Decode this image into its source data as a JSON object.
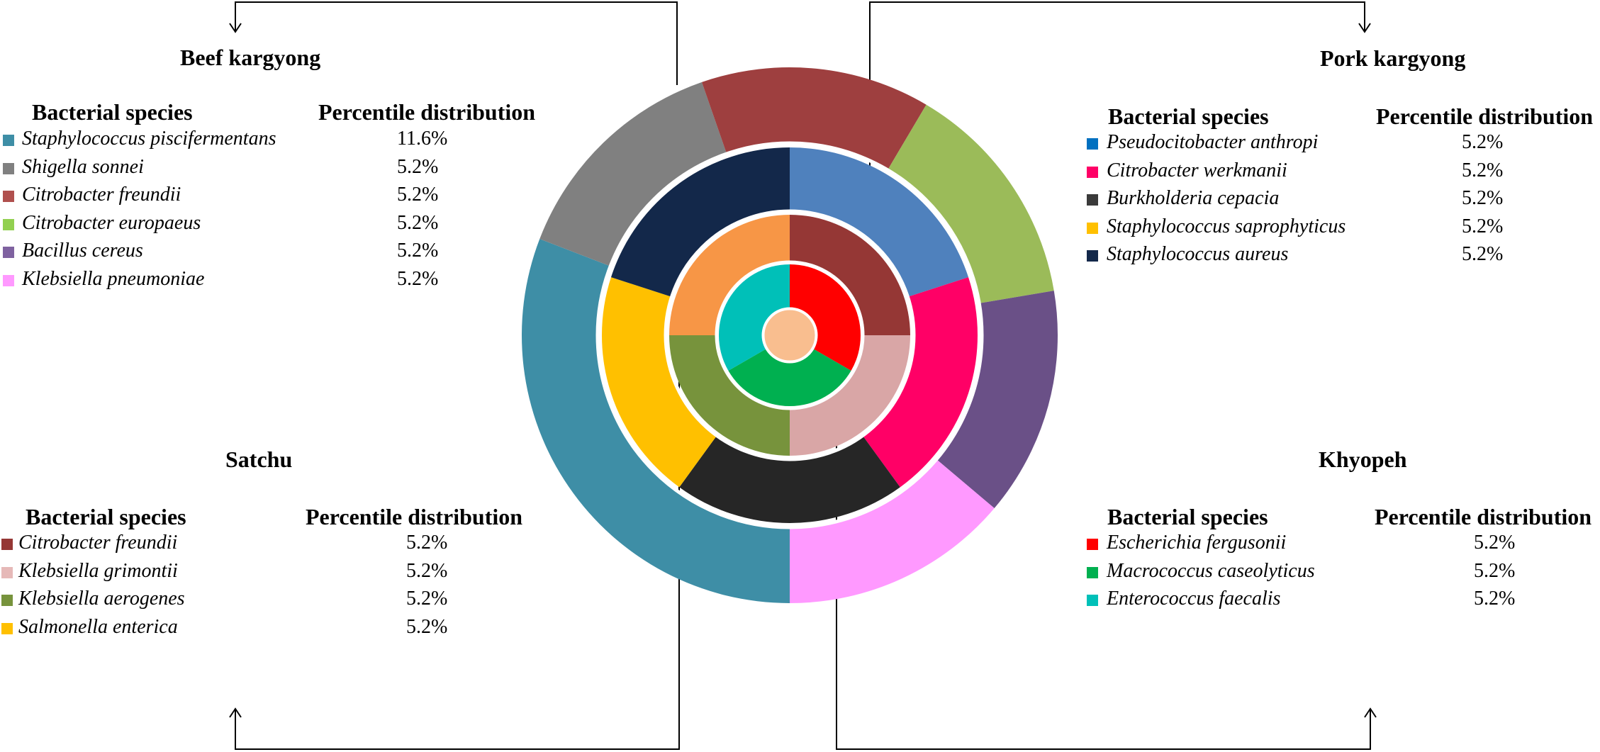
{
  "chart_data": {
    "type": "pie",
    "rings": [
      {
        "ring": "outer",
        "group": "Beef kargyong",
        "slices": [
          {
            "label": "Staphylococcus piscifermentans",
            "value": 11.6,
            "color": "#3E8EA6"
          },
          {
            "label": "Shigella sonnei",
            "value": 5.2,
            "color": "#808080"
          },
          {
            "label": "Citrobacter freundii",
            "value": 5.2,
            "color": "#9E3F3F"
          },
          {
            "label": "Citrobacter europaeus",
            "value": 5.2,
            "color": "#9BBB59"
          },
          {
            "label": "Bacillus cereus",
            "value": 5.2,
            "color": "#6A5087"
          },
          {
            "label": "Klebsiella pneumoniae",
            "value": 5.2,
            "color": "#FF99FF"
          }
        ]
      },
      {
        "ring": "second",
        "group": "Pork kargyong",
        "slices": [
          {
            "label": "Pseudocitobacter anthropi",
            "value": 5.2,
            "color": "#4F81BD"
          },
          {
            "label": "Citrobacter werkmanii",
            "value": 5.2,
            "color": "#FF0066"
          },
          {
            "label": "Burkholderia cepacia",
            "value": 5.2,
            "color": "#262626"
          },
          {
            "label": "Staphylococcus saprophyticus",
            "value": 5.2,
            "color": "#FFC000"
          },
          {
            "label": "Staphylococcus aureus",
            "value": 5.2,
            "color": "#13284A"
          }
        ]
      },
      {
        "ring": "third",
        "group": "Satchu",
        "slices": [
          {
            "label": "Citrobacter freundii",
            "value": 5.2,
            "color": "#953735"
          },
          {
            "label": "Klebsiella grimontii",
            "value": 5.2,
            "color": "#D9A6A6"
          },
          {
            "label": "Klebsiella aerogenes",
            "value": 5.2,
            "color": "#77933C"
          },
          {
            "label": "Salmonella enterica",
            "value": 5.2,
            "color": "#F79646"
          }
        ]
      },
      {
        "ring": "inner",
        "group": "Khyopeh",
        "slices": [
          {
            "label": "Escherichia fergusonii",
            "value": 5.2,
            "color": "#FF0000"
          },
          {
            "label": "Macrococcus caseolyticus",
            "value": 5.2,
            "color": "#00B050"
          },
          {
            "label": "Enterococcus faecalis",
            "value": 5.2,
            "color": "#00C0B8"
          }
        ]
      }
    ],
    "center_color": "#F9BE8F"
  },
  "legends": {
    "beef": {
      "title": "Beef kargyong",
      "col_species": "Bacterial species",
      "col_percent": "Percentile distribution",
      "rows": [
        {
          "species": "Staphylococcus piscifermentans",
          "percent": "11.6%",
          "color": "#3E8EA6"
        },
        {
          "species": "Shigella sonnei",
          "percent": "5.2%",
          "color": "#808080"
        },
        {
          "species": "Citrobacter freundii",
          "percent": "5.2%",
          "color": "#B0504E"
        },
        {
          "species": "Citrobacter europaeus",
          "percent": "5.2%",
          "color": "#92D050"
        },
        {
          "species": "Bacillus cereus",
          "percent": "5.2%",
          "color": "#7F62A0"
        },
        {
          "species": "Klebsiella pneumoniae",
          "percent": "5.2%",
          "color": "#FF99FF"
        }
      ]
    },
    "pork": {
      "title": "Pork kargyong",
      "col_species": "Bacterial species",
      "col_percent": "Percentile distribution",
      "rows": [
        {
          "species": "Pseudocitobacter anthropi",
          "percent": "5.2%",
          "color": "#0070C0"
        },
        {
          "species": "Citrobacter werkmanii",
          "percent": "5.2%",
          "color": "#FF0066"
        },
        {
          "species": "Burkholderia cepacia",
          "percent": "5.2%",
          "color": "#3A3A3A"
        },
        {
          "species": "Staphylococcus saprophyticus",
          "percent": "5.2%",
          "color": "#FFC000"
        },
        {
          "species": "Staphylococcus aureus",
          "percent": "5.2%",
          "color": "#13284A"
        }
      ]
    },
    "satchu": {
      "title": "Satchu",
      "col_species": "Bacterial species",
      "col_percent": "Percentile distribution",
      "rows": [
        {
          "species": "Citrobacter freundii",
          "percent": "5.2%",
          "color": "#953735"
        },
        {
          "species": "Klebsiella grimontii",
          "percent": "5.2%",
          "color": "#E6B9B8"
        },
        {
          "species": "Klebsiella aerogenes",
          "percent": "5.2%",
          "color": "#77933C"
        },
        {
          "species": "Salmonella enterica",
          "percent": "5.2%",
          "color": "#FFC000"
        }
      ]
    },
    "khyopeh": {
      "title": "Khyopeh",
      "col_species": "Bacterial species",
      "col_percent": "Percentile distribution",
      "rows": [
        {
          "species": "Escherichia fergusonii",
          "percent": "5.2%",
          "color": "#FF0000"
        },
        {
          "species": "Macrococcus caseolyticus",
          "percent": "5.2%",
          "color": "#00B050"
        },
        {
          "species": "Enterococcus faecalis",
          "percent": "5.2%",
          "color": "#00C0B8"
        }
      ]
    }
  }
}
